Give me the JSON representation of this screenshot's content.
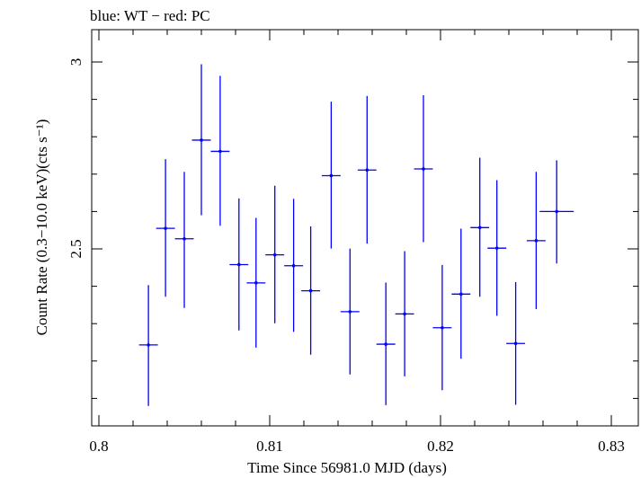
{
  "chart_data": {
    "type": "scatter",
    "title": "blue: WT − red: PC",
    "xlabel": "Time Since 56981.0 MJD (days)",
    "ylabel": "Count Rate (0.3−10.0 keV)(cts s⁻¹)",
    "xlim": [
      0.8,
      0.83
    ],
    "ylim": [
      2.0,
      3.09
    ],
    "x_ticks": [
      "0.8",
      "0.81",
      "0.82",
      "0.83"
    ],
    "y_ticks": [
      "2.5",
      "3"
    ],
    "grid": false,
    "series": [
      {
        "name": "WT",
        "color": "#0000ff",
        "points": [
          {
            "x": 0.8029,
            "xerr": 0.00055,
            "y": 2.243,
            "yerr_lo": 0.163,
            "yerr_hi": 0.16
          },
          {
            "x": 0.8039,
            "xerr": 0.00055,
            "y": 2.555,
            "yerr_lo": 0.183,
            "yerr_hi": 0.185
          },
          {
            "x": 0.805,
            "xerr": 0.00055,
            "y": 2.527,
            "yerr_lo": 0.185,
            "yerr_hi": 0.179
          },
          {
            "x": 0.806,
            "xerr": 0.00055,
            "y": 2.791,
            "yerr_lo": 0.201,
            "yerr_hi": 0.203
          },
          {
            "x": 0.8071,
            "xerr": 0.00055,
            "y": 2.761,
            "yerr_lo": 0.199,
            "yerr_hi": 0.202
          },
          {
            "x": 0.8082,
            "xerr": 0.00055,
            "y": 2.458,
            "yerr_lo": 0.176,
            "yerr_hi": 0.177
          },
          {
            "x": 0.8092,
            "xerr": 0.00055,
            "y": 2.409,
            "yerr_lo": 0.173,
            "yerr_hi": 0.174
          },
          {
            "x": 0.8103,
            "xerr": 0.00055,
            "y": 2.484,
            "yerr_lo": 0.183,
            "yerr_hi": 0.185
          },
          {
            "x": 0.8114,
            "xerr": 0.00055,
            "y": 2.455,
            "yerr_lo": 0.177,
            "yerr_hi": 0.179
          },
          {
            "x": 0.8124,
            "xerr": 0.00055,
            "y": 2.388,
            "yerr_lo": 0.171,
            "yerr_hi": 0.172
          },
          {
            "x": 0.8136,
            "xerr": 0.00055,
            "y": 2.696,
            "yerr_lo": 0.195,
            "yerr_hi": 0.198
          },
          {
            "x": 0.8147,
            "xerr": 0.00055,
            "y": 2.332,
            "yerr_lo": 0.168,
            "yerr_hi": 0.169
          },
          {
            "x": 0.8157,
            "xerr": 0.00055,
            "y": 2.711,
            "yerr_lo": 0.197,
            "yerr_hi": 0.198
          },
          {
            "x": 0.8168,
            "xerr": 0.00055,
            "y": 2.245,
            "yerr_lo": 0.163,
            "yerr_hi": 0.165
          },
          {
            "x": 0.8179,
            "xerr": 0.00055,
            "y": 2.326,
            "yerr_lo": 0.167,
            "yerr_hi": 0.168
          },
          {
            "x": 0.819,
            "xerr": 0.00055,
            "y": 2.714,
            "yerr_lo": 0.196,
            "yerr_hi": 0.197
          },
          {
            "x": 0.8201,
            "xerr": 0.00055,
            "y": 2.289,
            "yerr_lo": 0.167,
            "yerr_hi": 0.168
          },
          {
            "x": 0.8212,
            "xerr": 0.00055,
            "y": 2.379,
            "yerr_lo": 0.173,
            "yerr_hi": 0.175
          },
          {
            "x": 0.8223,
            "xerr": 0.00055,
            "y": 2.557,
            "yerr_lo": 0.185,
            "yerr_hi": 0.187
          },
          {
            "x": 0.8233,
            "xerr": 0.00055,
            "y": 2.502,
            "yerr_lo": 0.181,
            "yerr_hi": 0.182
          },
          {
            "x": 0.8244,
            "xerr": 0.00055,
            "y": 2.247,
            "yerr_lo": 0.164,
            "yerr_hi": 0.164
          },
          {
            "x": 0.8256,
            "xerr": 0.00055,
            "y": 2.522,
            "yerr_lo": 0.183,
            "yerr_hi": 0.184
          },
          {
            "x": 0.8268,
            "xerr": 0.001,
            "y": 2.6,
            "yerr_lo": 0.139,
            "yerr_hi": 0.137
          }
        ]
      }
    ]
  }
}
